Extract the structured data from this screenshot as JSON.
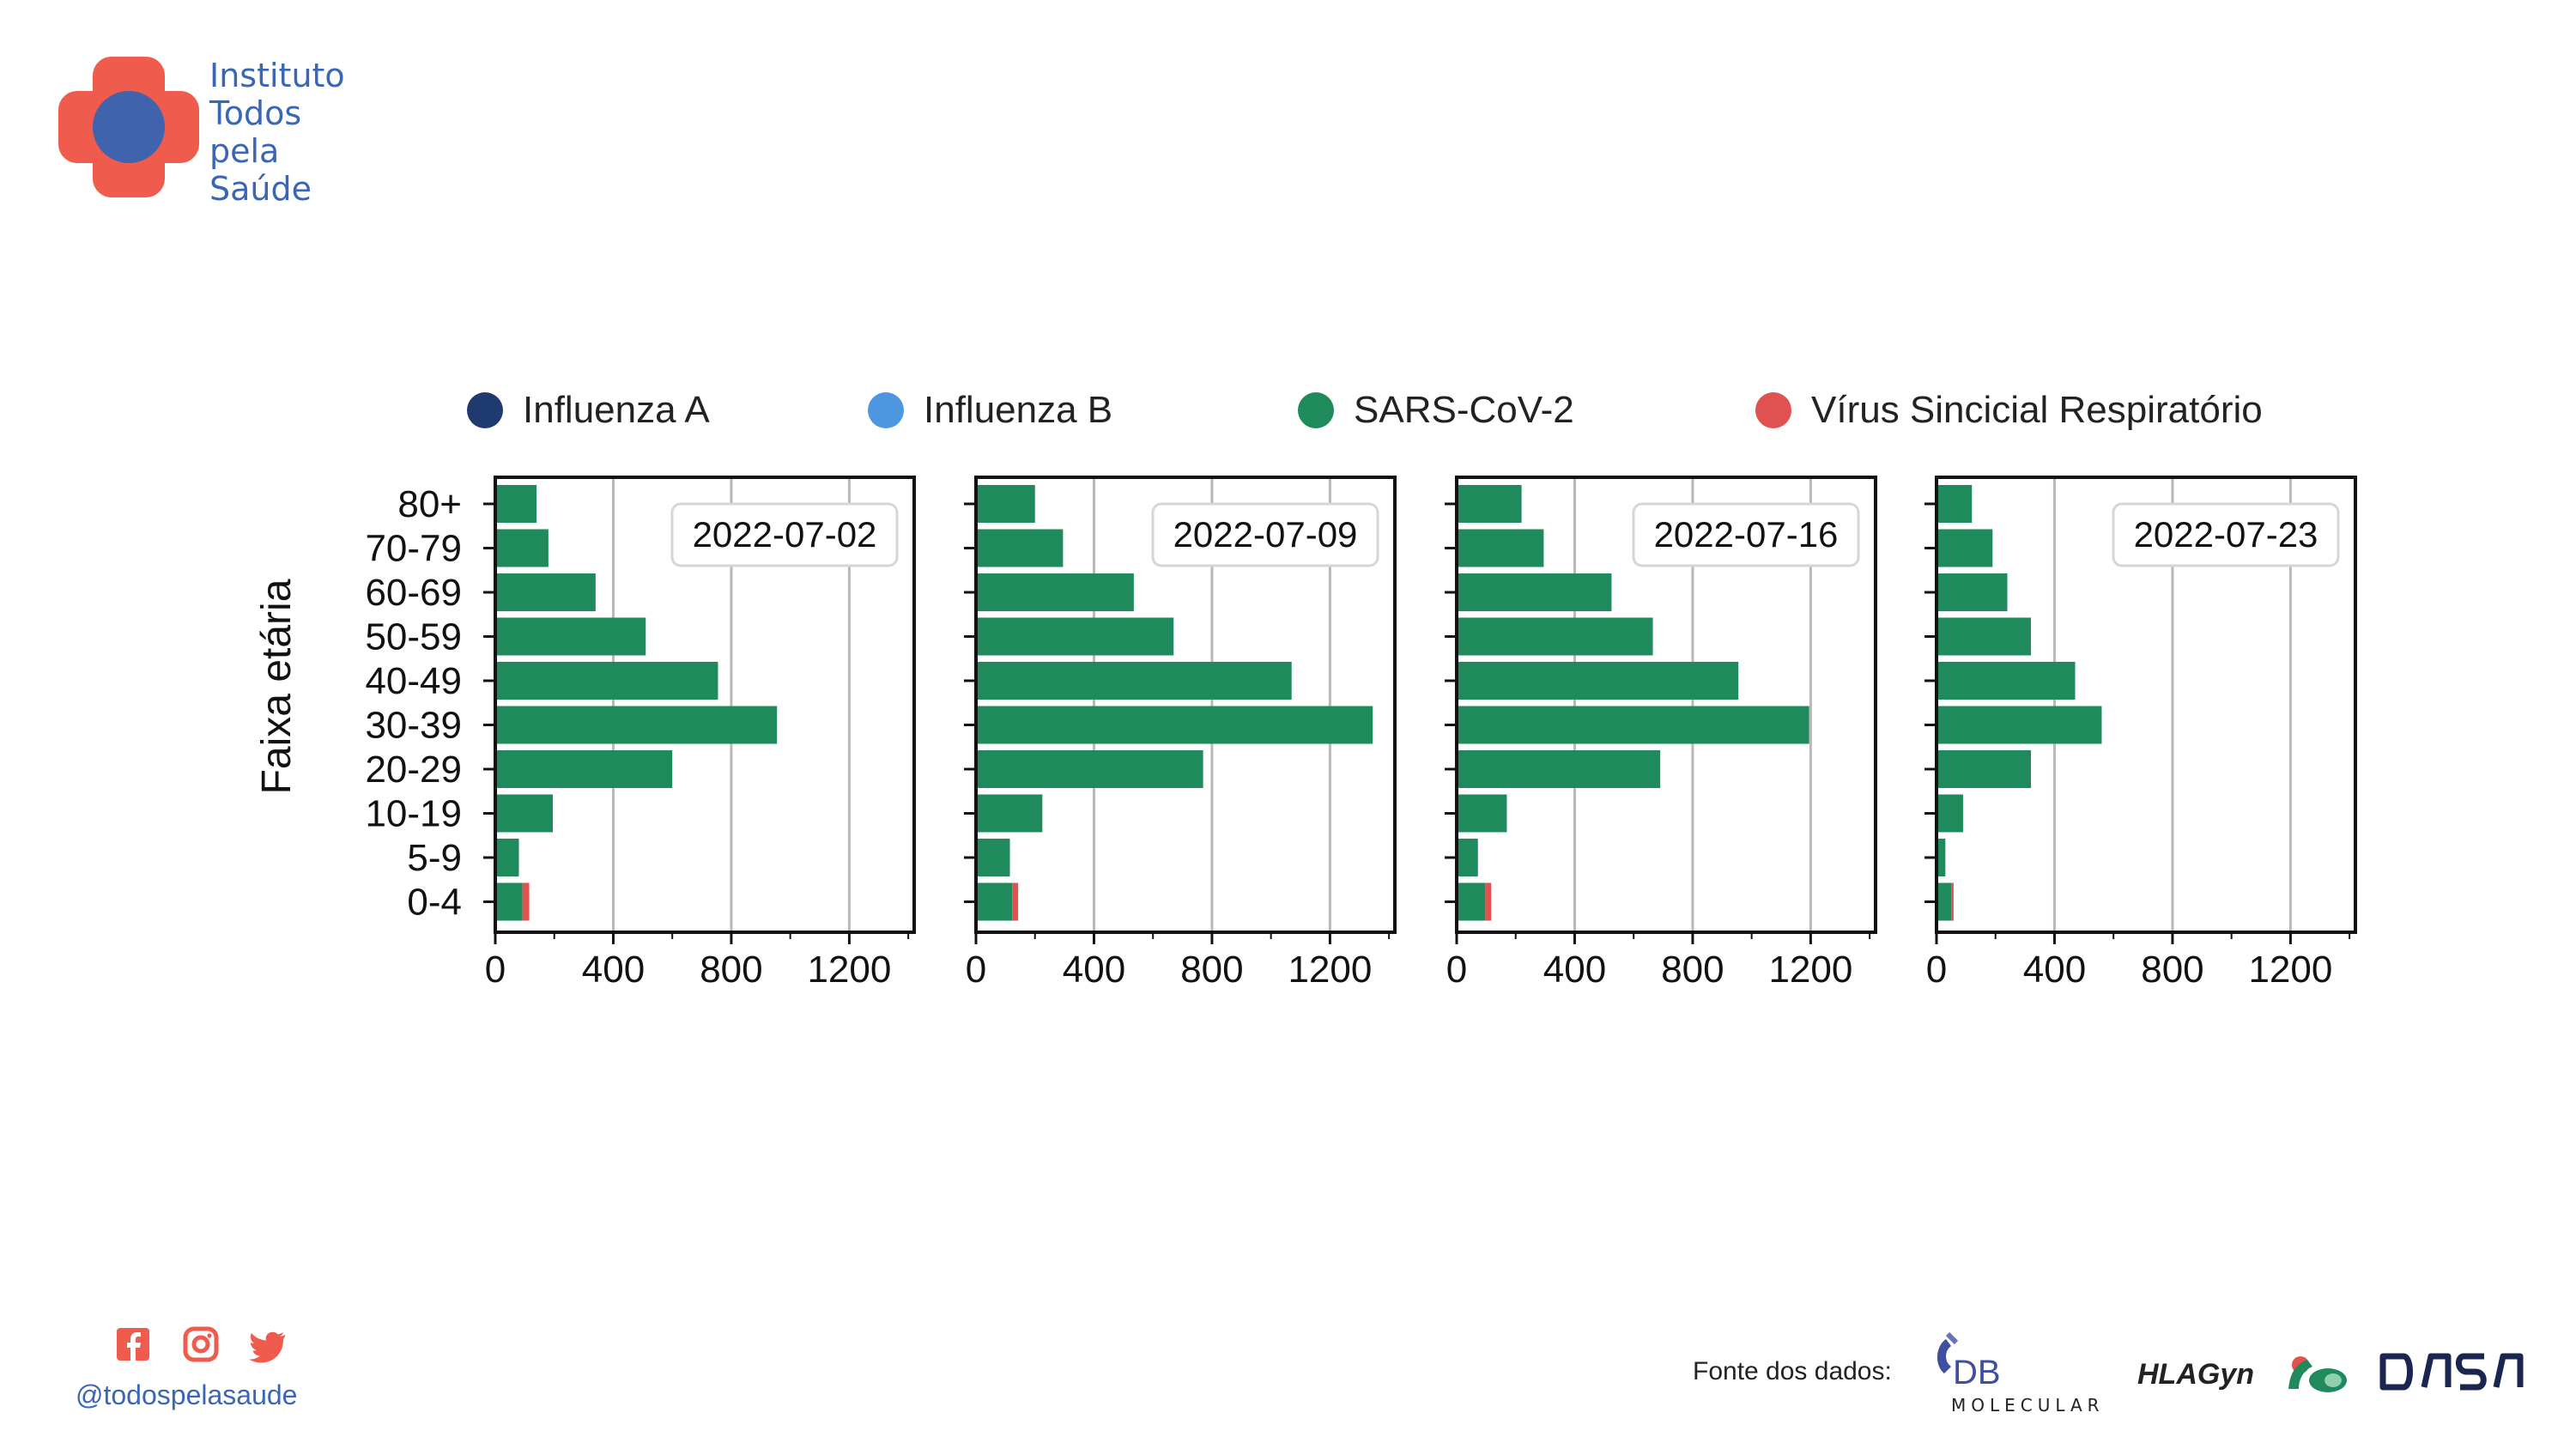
{
  "brand": {
    "name_lines": [
      "Instituto",
      "Todos",
      "pela",
      "Saúde"
    ],
    "colors": {
      "cross": "#ef5b4d",
      "circle": "#3f63ad",
      "text": "#3a66b4"
    }
  },
  "chart_data": {
    "type": "bar",
    "orientation": "horizontal",
    "stacked": true,
    "ylabel": "Faixa etária",
    "categories": [
      "0-4",
      "5-9",
      "10-19",
      "20-29",
      "30-39",
      "40-49",
      "50-59",
      "60-69",
      "70-79",
      "80+"
    ],
    "xlim": [
      0,
      1420
    ],
    "xticks": [
      "0",
      "400",
      "800",
      "1200"
    ],
    "xtick_values": [
      0,
      400,
      800,
      1200
    ],
    "grid": "vertical",
    "legend_position": "top",
    "legend": [
      {
        "name": "Influenza A",
        "color": "#1f3a6e"
      },
      {
        "name": "Influenza B",
        "color": "#4d96e0"
      },
      {
        "name": "SARS-CoV-2",
        "color": "#1f8a5b"
      },
      {
        "name": "Vírus Sincicial Respiratório",
        "color": "#e05150"
      }
    ],
    "panels": [
      {
        "date": "2022-07-02",
        "series": [
          {
            "name": "Influenza A",
            "values": [
              0,
              0,
              0,
              0,
              0,
              0,
              0,
              0,
              0,
              0
            ]
          },
          {
            "name": "Influenza B",
            "values": [
              0,
              0,
              0,
              0,
              0,
              0,
              0,
              0,
              0,
              0
            ]
          },
          {
            "name": "SARS-CoV-2",
            "values": [
              92,
              80,
              195,
              600,
              955,
              755,
              510,
              340,
              180,
              140
            ]
          },
          {
            "name": "Vírus Sincicial Respiratório",
            "values": [
              23,
              0,
              0,
              0,
              0,
              0,
              0,
              0,
              0,
              0
            ]
          }
        ]
      },
      {
        "date": "2022-07-09",
        "series": [
          {
            "name": "Influenza A",
            "values": [
              0,
              0,
              0,
              0,
              0,
              0,
              0,
              0,
              0,
              0
            ]
          },
          {
            "name": "Influenza B",
            "values": [
              0,
              0,
              0,
              0,
              0,
              0,
              0,
              0,
              0,
              0
            ]
          },
          {
            "name": "SARS-CoV-2",
            "values": [
              123,
              115,
              225,
              770,
              1345,
              1070,
              670,
              535,
              295,
              200
            ]
          },
          {
            "name": "Vírus Sincicial Respiratório",
            "values": [
              20,
              0,
              0,
              0,
              0,
              0,
              0,
              0,
              0,
              0
            ]
          }
        ]
      },
      {
        "date": "2022-07-16",
        "series": [
          {
            "name": "Influenza A",
            "values": [
              0,
              0,
              0,
              0,
              0,
              0,
              0,
              0,
              0,
              0
            ]
          },
          {
            "name": "Influenza B",
            "values": [
              0,
              0,
              0,
              0,
              0,
              0,
              0,
              0,
              0,
              0
            ]
          },
          {
            "name": "SARS-CoV-2",
            "values": [
              97,
              72,
              170,
              690,
              1195,
              955,
              665,
              525,
              295,
              220
            ]
          },
          {
            "name": "Vírus Sincicial Respiratório",
            "values": [
              20,
              0,
              0,
              0,
              0,
              0,
              0,
              0,
              0,
              0
            ]
          }
        ]
      },
      {
        "date": "2022-07-23",
        "series": [
          {
            "name": "Influenza A",
            "values": [
              0,
              0,
              0,
              0,
              0,
              0,
              0,
              0,
              0,
              0
            ]
          },
          {
            "name": "Influenza B",
            "values": [
              0,
              0,
              0,
              0,
              0,
              0,
              0,
              0,
              0,
              0
            ]
          },
          {
            "name": "SARS-CoV-2",
            "values": [
              50,
              30,
              90,
              320,
              560,
              470,
              320,
              240,
              190,
              120
            ]
          },
          {
            "name": "Vírus Sincicial Respiratório",
            "values": [
              8,
              0,
              0,
              0,
              0,
              0,
              0,
              0,
              0,
              0
            ]
          }
        ]
      }
    ]
  },
  "social": {
    "icons": [
      "facebook-icon",
      "instagram-icon",
      "twitter-icon"
    ],
    "handle": "@todospelasaude",
    "color": "#ef5b4d"
  },
  "footer": {
    "source_label": "Fonte dos dados:",
    "partners": [
      "DB MOLECULAR",
      "HLAGyn",
      "dasa"
    ]
  }
}
